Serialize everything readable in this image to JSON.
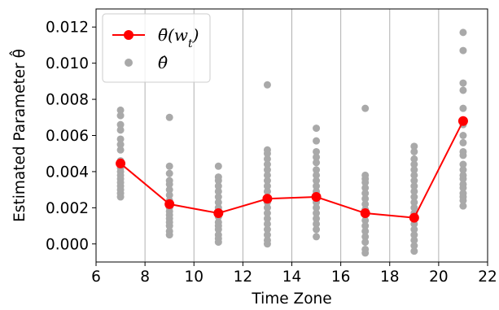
{
  "chart_data": {
    "type": "scatter",
    "xlabel": "Time Zone",
    "ylabel": "Estimated Parameter θ̂",
    "xlim": [
      6,
      22
    ],
    "ylim": [
      -0.001,
      0.013
    ],
    "x_ticks": [
      6,
      8,
      10,
      12,
      14,
      16,
      18,
      20,
      22
    ],
    "y_ticks": [
      0.0,
      0.002,
      0.004,
      0.006,
      0.008,
      0.01,
      0.012
    ],
    "y_tick_labels": [
      "0.000",
      "0.002",
      "0.004",
      "0.006",
      "0.008",
      "0.010",
      "0.012"
    ],
    "vertical_gridlines_at": [
      8,
      10,
      12,
      14,
      16,
      18,
      20
    ],
    "legend_position": "top-left",
    "series": [
      {
        "name": "θ̄(w_t)",
        "legend_label": "θ̄(w",
        "legend_label_sub": "t",
        "legend_label_tail": ")",
        "kind": "line+marker",
        "color": "#ff0000",
        "x": [
          7,
          9,
          11,
          13,
          15,
          17,
          19,
          21
        ],
        "y": [
          0.00445,
          0.0022,
          0.0017,
          0.0025,
          0.0026,
          0.0017,
          0.00145,
          0.0068
        ]
      },
      {
        "name": "θ̂",
        "legend_label": "θ̂",
        "kind": "scatter",
        "color": "#a9a9a9",
        "points": [
          [
            7,
            0.0074
          ],
          [
            7,
            0.0071
          ],
          [
            7,
            0.0066
          ],
          [
            7,
            0.0063
          ],
          [
            7,
            0.0058
          ],
          [
            7,
            0.0055
          ],
          [
            7,
            0.0052
          ],
          [
            7,
            0.0046
          ],
          [
            7,
            0.0044
          ],
          [
            7,
            0.0042
          ],
          [
            7,
            0.004
          ],
          [
            7,
            0.0038
          ],
          [
            7,
            0.0036
          ],
          [
            7,
            0.0034
          ],
          [
            7,
            0.0032
          ],
          [
            7,
            0.003
          ],
          [
            7,
            0.0028
          ],
          [
            7,
            0.0026
          ],
          [
            9,
            0.007
          ],
          [
            9,
            0.0043
          ],
          [
            9,
            0.0039
          ],
          [
            9,
            0.0035
          ],
          [
            9,
            0.0033
          ],
          [
            9,
            0.003
          ],
          [
            9,
            0.0027
          ],
          [
            9,
            0.0024
          ],
          [
            9,
            0.0022
          ],
          [
            9,
            0.002
          ],
          [
            9,
            0.0018
          ],
          [
            9,
            0.0016
          ],
          [
            9,
            0.0014
          ],
          [
            9,
            0.0012
          ],
          [
            9,
            0.001
          ],
          [
            9,
            0.0007
          ],
          [
            9,
            0.0005
          ],
          [
            11,
            0.0043
          ],
          [
            11,
            0.0037
          ],
          [
            11,
            0.0035
          ],
          [
            11,
            0.0032
          ],
          [
            11,
            0.0029
          ],
          [
            11,
            0.0026
          ],
          [
            11,
            0.0023
          ],
          [
            11,
            0.002
          ],
          [
            11,
            0.0018
          ],
          [
            11,
            0.0015
          ],
          [
            11,
            0.0012
          ],
          [
            11,
            0.001
          ],
          [
            11,
            0.0008
          ],
          [
            11,
            0.0005
          ],
          [
            11,
            0.0003
          ],
          [
            11,
            0.0001
          ],
          [
            13,
            0.0088
          ],
          [
            13,
            0.0052
          ],
          [
            13,
            0.005
          ],
          [
            13,
            0.0047
          ],
          [
            13,
            0.0044
          ],
          [
            13,
            0.0041
          ],
          [
            13,
            0.0038
          ],
          [
            13,
            0.0035
          ],
          [
            13,
            0.0032
          ],
          [
            13,
            0.0029
          ],
          [
            13,
            0.0026
          ],
          [
            13,
            0.0023
          ],
          [
            13,
            0.002
          ],
          [
            13,
            0.0017
          ],
          [
            13,
            0.0014
          ],
          [
            13,
            0.0011
          ],
          [
            13,
            0.0008
          ],
          [
            13,
            0.0005
          ],
          [
            13,
            0.0002
          ],
          [
            13,
            0.0
          ],
          [
            15,
            0.0064
          ],
          [
            15,
            0.0057
          ],
          [
            15,
            0.0051
          ],
          [
            15,
            0.0048
          ],
          [
            15,
            0.0045
          ],
          [
            15,
            0.0041
          ],
          [
            15,
            0.0038
          ],
          [
            15,
            0.0035
          ],
          [
            15,
            0.0032
          ],
          [
            15,
            0.0029
          ],
          [
            15,
            0.0026
          ],
          [
            15,
            0.0023
          ],
          [
            15,
            0.002
          ],
          [
            15,
            0.0017
          ],
          [
            15,
            0.0014
          ],
          [
            15,
            0.0011
          ],
          [
            15,
            0.0008
          ],
          [
            15,
            0.0004
          ],
          [
            17,
            0.0075
          ],
          [
            17,
            0.0038
          ],
          [
            17,
            0.0036
          ],
          [
            17,
            0.0034
          ],
          [
            17,
            0.0031
          ],
          [
            17,
            0.0028
          ],
          [
            17,
            0.0025
          ],
          [
            17,
            0.0022
          ],
          [
            17,
            0.0019
          ],
          [
            17,
            0.0016
          ],
          [
            17,
            0.0013
          ],
          [
            17,
            0.001
          ],
          [
            17,
            0.0007
          ],
          [
            17,
            0.0004
          ],
          [
            17,
            0.0001
          ],
          [
            17,
            -0.0003
          ],
          [
            17,
            -0.0005
          ],
          [
            19,
            0.0054
          ],
          [
            19,
            0.0051
          ],
          [
            19,
            0.0047
          ],
          [
            19,
            0.0044
          ],
          [
            19,
            0.0041
          ],
          [
            19,
            0.0038
          ],
          [
            19,
            0.0035
          ],
          [
            19,
            0.0032
          ],
          [
            19,
            0.0029
          ],
          [
            19,
            0.0026
          ],
          [
            19,
            0.0023
          ],
          [
            19,
            0.002
          ],
          [
            19,
            0.0017
          ],
          [
            19,
            0.0014
          ],
          [
            19,
            0.0011
          ],
          [
            19,
            0.0008
          ],
          [
            19,
            0.0005
          ],
          [
            19,
            0.0002
          ],
          [
            19,
            -0.0001
          ],
          [
            19,
            -0.0004
          ],
          [
            21,
            0.0117
          ],
          [
            21,
            0.0107
          ],
          [
            21,
            0.0089
          ],
          [
            21,
            0.0085
          ],
          [
            21,
            0.0075
          ],
          [
            21,
            0.0066
          ],
          [
            21,
            0.006
          ],
          [
            21,
            0.0056
          ],
          [
            21,
            0.0051
          ],
          [
            21,
            0.0049
          ],
          [
            21,
            0.0044
          ],
          [
            21,
            0.0041
          ],
          [
            21,
            0.0038
          ],
          [
            21,
            0.0036
          ],
          [
            21,
            0.0033
          ],
          [
            21,
            0.0031
          ],
          [
            21,
            0.0028
          ],
          [
            21,
            0.0026
          ],
          [
            21,
            0.0024
          ],
          [
            21,
            0.0021
          ]
        ]
      }
    ]
  }
}
